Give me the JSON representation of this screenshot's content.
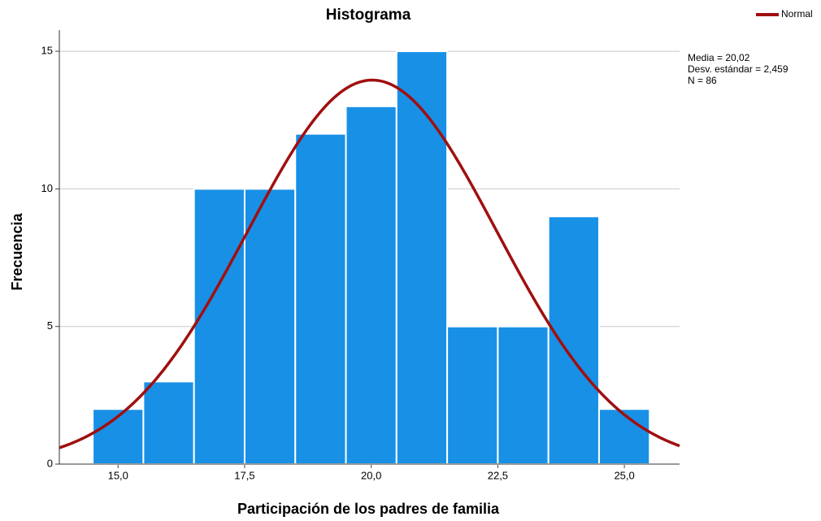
{
  "chart_data": {
    "type": "histogram",
    "title": "Histograma",
    "xlabel": "Participación de los padres de familia",
    "ylabel": "Frecuencia",
    "bins": [
      14.5,
      15.5,
      16.5,
      17.5,
      18.5,
      19.5,
      20.5,
      21.5,
      22.5,
      23.5,
      24.5,
      25.5
    ],
    "values": [
      2,
      3,
      10,
      10,
      12,
      13,
      15,
      5,
      5,
      9,
      2
    ],
    "color": "#1890e6",
    "xlim": [
      13.84,
      26.09
    ],
    "ylim": [
      0,
      15.77
    ],
    "xticks": [
      {
        "value": 15,
        "label": "15,0"
      },
      {
        "value": 17.5,
        "label": "17,5"
      },
      {
        "value": 20,
        "label": "20,0"
      },
      {
        "value": 22.5,
        "label": "22,5"
      },
      {
        "value": 25,
        "label": "25,0"
      }
    ],
    "yticks": [
      0,
      5,
      10,
      15
    ],
    "grid": true,
    "curve": {
      "name": "Normal",
      "color": "#a00f0f"
    },
    "legend": "top-right",
    "stats": [
      {
        "value": 20.02,
        "label": "Media = 20,02"
      },
      {
        "value": 2.459,
        "label": "Desv. estándar = 2,459"
      },
      {
        "value": 86,
        "label": "N = 86"
      }
    ]
  }
}
